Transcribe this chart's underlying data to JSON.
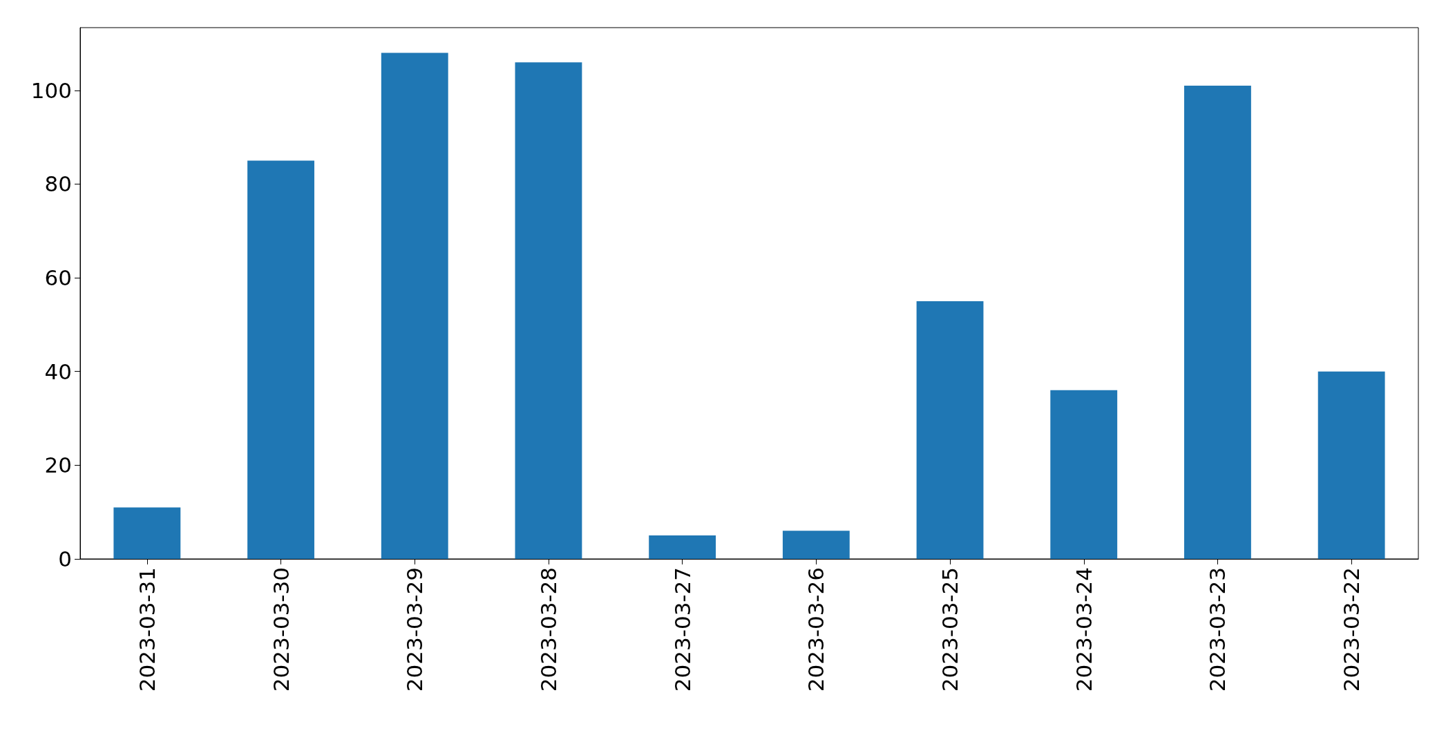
{
  "chart_data": {
    "type": "bar",
    "categories": [
      "2023-03-31",
      "2023-03-30",
      "2023-03-29",
      "2023-03-28",
      "2023-03-27",
      "2023-03-26",
      "2023-03-25",
      "2023-03-24",
      "2023-03-23",
      "2023-03-22"
    ],
    "values": [
      11,
      85,
      108,
      106,
      5,
      6,
      55,
      36,
      101,
      40
    ],
    "color": "#1f77b4",
    "ylim": [
      0,
      113.4
    ],
    "yticks": [
      0,
      20,
      40,
      60,
      80,
      100
    ],
    "grid": false
  }
}
